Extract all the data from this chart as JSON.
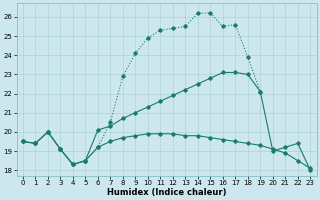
{
  "xlabel": "Humidex (Indice chaleur)",
  "background_color": "#cce8ee",
  "line_color": "#1a7a6e",
  "xlim": [
    -0.5,
    23.5
  ],
  "ylim": [
    17.7,
    26.7
  ],
  "yticks": [
    18,
    19,
    20,
    21,
    22,
    23,
    24,
    25,
    26
  ],
  "xticks": [
    0,
    1,
    2,
    3,
    4,
    5,
    6,
    7,
    8,
    9,
    10,
    11,
    12,
    13,
    14,
    15,
    16,
    17,
    18,
    19,
    20,
    21,
    22,
    23
  ],
  "curve1_x": [
    0,
    1,
    2,
    3,
    4,
    5,
    6,
    7,
    8,
    9,
    10,
    11,
    12,
    13,
    14,
    15,
    16,
    17,
    18,
    19,
    20,
    21,
    22,
    23
  ],
  "curve1_y": [
    19.5,
    19.4,
    20.0,
    19.1,
    18.3,
    18.5,
    19.2,
    19.5,
    19.7,
    19.8,
    19.9,
    19.9,
    19.9,
    19.8,
    19.8,
    19.7,
    19.6,
    19.5,
    19.4,
    19.3,
    19.1,
    18.9,
    18.5,
    18.1
  ],
  "curve2_x": [
    0,
    1,
    2,
    3,
    4,
    5,
    6,
    7,
    8,
    9,
    10,
    11,
    12,
    13,
    14,
    15,
    16,
    17,
    18,
    19
  ],
  "curve2_y": [
    19.5,
    19.4,
    20.0,
    19.1,
    18.3,
    18.5,
    19.2,
    20.5,
    22.9,
    24.1,
    24.9,
    25.3,
    25.4,
    25.5,
    26.2,
    26.2,
    25.5,
    25.6,
    23.9,
    22.1
  ],
  "curve3_x": [
    0,
    1,
    2,
    3,
    4,
    5,
    6,
    7,
    8,
    9,
    10,
    11,
    12,
    13,
    14,
    15,
    16,
    17,
    18,
    19,
    20,
    21,
    22,
    23
  ],
  "curve3_y": [
    19.5,
    19.4,
    20.0,
    19.1,
    18.3,
    18.5,
    20.1,
    20.3,
    20.7,
    21.0,
    21.3,
    21.6,
    21.9,
    22.2,
    22.5,
    22.8,
    23.1,
    23.1,
    23.0,
    22.1,
    19.0,
    19.2,
    19.4,
    18.0
  ]
}
